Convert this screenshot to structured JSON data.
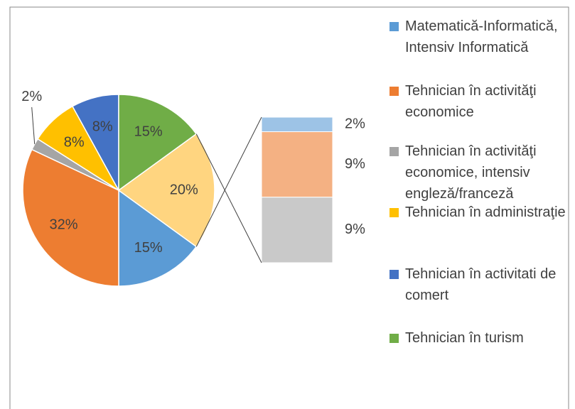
{
  "chart_data": {
    "type": "pie-of-bar",
    "categories": [
      "Matematică-Informatică, Intensiv Informatică",
      "Tehnician în activităţi economice",
      "Tehnician în activităţi economice, intensiv engleză/franceză",
      "Tehnician în administraţie",
      "Tehnician în activitati de comert",
      "Tehnician în turism"
    ],
    "values": [
      15,
      32,
      2,
      8,
      8,
      15
    ],
    "value_labels": [
      "15%",
      "32%",
      "2%",
      "8%",
      "8%",
      "15%"
    ],
    "colors": [
      "#5b9bd5",
      "#ed7d31",
      "#a5a5a5",
      "#ffc000",
      "#4472c4",
      "#70ad47"
    ],
    "other_value": 20,
    "other_value_label": "20%",
    "other_color": "#ffd580",
    "bar_values": [
      2,
      9,
      9
    ],
    "bar_value_labels": [
      "2%",
      "9%",
      "9%"
    ],
    "bar_colors": [
      "#9dc3e6",
      "#f4b183",
      "#c9c9c9"
    ]
  }
}
